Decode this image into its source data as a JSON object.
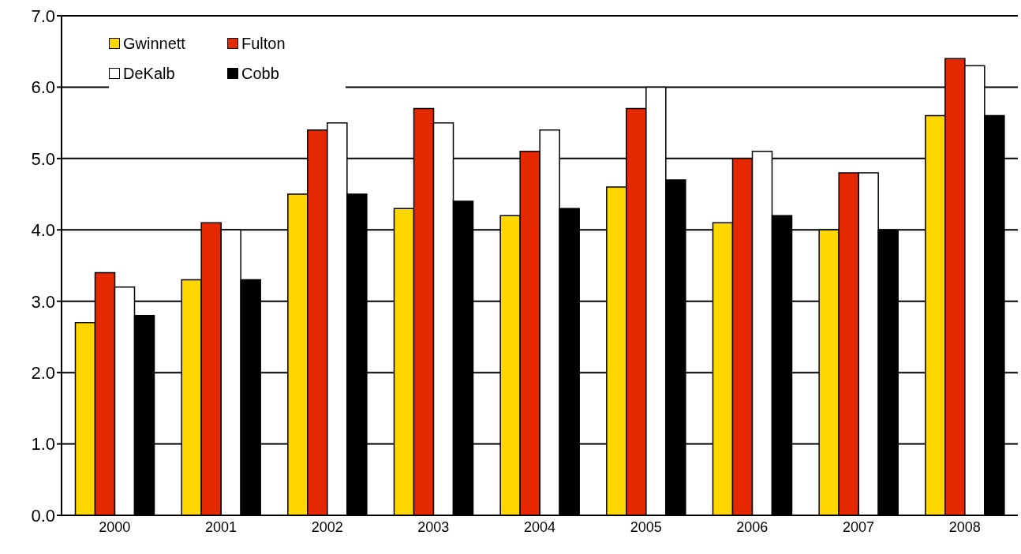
{
  "chart_data": {
    "type": "bar",
    "categories": [
      "2000",
      "2001",
      "2002",
      "2003",
      "2004",
      "2005",
      "2006",
      "2007",
      "2008"
    ],
    "series": [
      {
        "name": "Gwinnett",
        "color": "#ffd700",
        "values": [
          2.7,
          3.3,
          4.5,
          4.3,
          4.2,
          4.6,
          4.1,
          4.0,
          5.6
        ]
      },
      {
        "name": "Fulton",
        "color": "#e52800",
        "values": [
          3.4,
          4.1,
          5.4,
          5.7,
          5.1,
          5.7,
          5.0,
          4.8,
          6.4
        ]
      },
      {
        "name": "DeKalb",
        "color": "#ffffff",
        "values": [
          3.2,
          4.0,
          5.5,
          5.5,
          5.4,
          6.0,
          5.1,
          4.8,
          6.3
        ]
      },
      {
        "name": "Cobb",
        "color": "#000000",
        "values": [
          2.8,
          3.3,
          4.5,
          4.4,
          4.3,
          4.7,
          4.2,
          4.0,
          5.6
        ]
      }
    ],
    "ylim": [
      0,
      7
    ],
    "yticks": [
      {
        "value": 0,
        "label": "0.0"
      },
      {
        "value": 1,
        "label": "1.0"
      },
      {
        "value": 2,
        "label": "2.0"
      },
      {
        "value": 3,
        "label": "3.0"
      },
      {
        "value": 4,
        "label": "4.0"
      },
      {
        "value": 5,
        "label": "5.0"
      },
      {
        "value": 6,
        "label": "6.0"
      },
      {
        "value": 7,
        "label": "7.0"
      }
    ],
    "grid": "y",
    "legend": "top left"
  }
}
